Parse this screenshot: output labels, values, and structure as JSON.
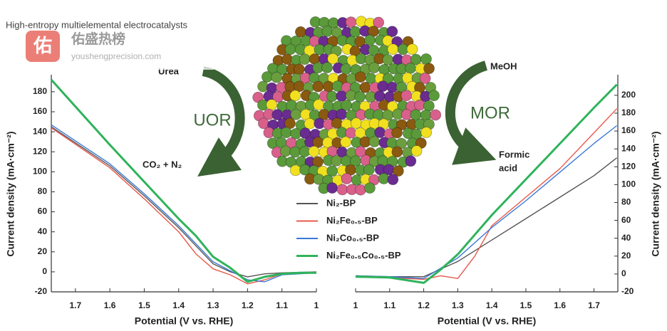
{
  "title": "High-entropy multielemental electrocatalysts",
  "watermark": {
    "icon": "佑",
    "name": "佑盛热榜",
    "url": "youshengprecision.com"
  },
  "annotations": {
    "urea": "Urea",
    "uor": "UOR",
    "uor_product": "CO₂ + N₂",
    "meoh": "MeOH",
    "mor": "MOR",
    "mor_product_1": "Formic",
    "mor_product_2": "acid"
  },
  "chart_data": [
    {
      "type": "line",
      "xlabel": "Potential (V vs. RHE)",
      "ylabel": "Current density (mA·cm⁻²)",
      "yaxis_side": "left",
      "xlim": [
        1.77,
        1.0
      ],
      "xticks": [
        1.7,
        1.6,
        1.5,
        1.4,
        1.3,
        1.2,
        1.1,
        1.0
      ],
      "ylim": [
        -20,
        197
      ],
      "yticks": [
        -20,
        0,
        20,
        40,
        60,
        80,
        100,
        120,
        140,
        160,
        180
      ],
      "series": [
        {
          "name": "Ni₂-BP",
          "color": "#555555",
          "x": [
            1.77,
            1.6,
            1.5,
            1.4,
            1.35,
            1.3,
            1.25,
            1.2,
            1.15,
            1.1,
            1.0
          ],
          "values": [
            145,
            106,
            76,
            44,
            26,
            8,
            0,
            -5,
            -2,
            -1,
            0
          ]
        },
        {
          "name": "Ni₂Fe₀.₅-BP",
          "color": "#e8584a",
          "x": [
            1.77,
            1.6,
            1.5,
            1.4,
            1.35,
            1.3,
            1.25,
            1.2,
            1.15,
            1.1,
            1.0
          ],
          "values": [
            144,
            104,
            73,
            40,
            18,
            3,
            -3,
            -12,
            -8,
            -2,
            -1
          ]
        },
        {
          "name": "Ni₂Co₀.₅-BP",
          "color": "#3a78d8",
          "x": [
            1.77,
            1.6,
            1.5,
            1.4,
            1.35,
            1.3,
            1.25,
            1.2,
            1.15,
            1.1,
            1.0
          ],
          "values": [
            147,
            108,
            78,
            46,
            28,
            10,
            1,
            -8,
            -10,
            -3,
            -1
          ]
        },
        {
          "name": "Ni₂Fe₀.₅Co₀.₅-BP",
          "color": "#2fb35a",
          "x": [
            1.77,
            1.6,
            1.5,
            1.4,
            1.35,
            1.3,
            1.25,
            1.2,
            1.15,
            1.1,
            1.05,
            1.0
          ],
          "values": [
            192,
            127,
            90,
            53,
            36,
            15,
            4,
            -10,
            -5,
            -2,
            -1,
            -1
          ]
        }
      ]
    },
    {
      "type": "line",
      "xlabel": "Potential (V vs. RHE)",
      "ylabel": "Current density (mA·cm⁻²)",
      "yaxis_side": "right",
      "xlim": [
        1.0,
        1.77
      ],
      "xticks": [
        1.0,
        1.1,
        1.2,
        1.3,
        1.4,
        1.5,
        1.6,
        1.7
      ],
      "ylim": [
        -20,
        223
      ],
      "yticks": [
        -20,
        0,
        20,
        40,
        60,
        80,
        100,
        120,
        140,
        160,
        180,
        200
      ],
      "series": [
        {
          "name": "Ni₂-BP",
          "color": "#555555",
          "x": [
            1.0,
            1.1,
            1.2,
            1.3,
            1.4,
            1.5,
            1.6,
            1.7,
            1.767
          ],
          "values": [
            -2,
            -3,
            -3,
            14,
            38,
            62,
            86,
            110,
            130
          ]
        },
        {
          "name": "Ni₂Fe₀.₅-BP",
          "color": "#e8584a",
          "x": [
            1.0,
            1.1,
            1.2,
            1.25,
            1.3,
            1.35,
            1.4,
            1.5,
            1.6,
            1.7,
            1.767
          ],
          "values": [
            -3,
            -4,
            -6,
            -2,
            -5,
            20,
            54,
            86,
            118,
            158,
            185
          ]
        },
        {
          "name": "Ni₂Co₀.₅-BP",
          "color": "#3a78d8",
          "x": [
            1.0,
            1.1,
            1.2,
            1.3,
            1.4,
            1.5,
            1.6,
            1.7,
            1.767
          ],
          "values": [
            -2,
            -3,
            -5,
            18,
            52,
            82,
            114,
            146,
            166
          ]
        },
        {
          "name": "Ni₂Fe₀.₅Co₀.₅-BP",
          "color": "#2fb35a",
          "x": [
            1.0,
            1.1,
            1.2,
            1.25,
            1.3,
            1.4,
            1.5,
            1.6,
            1.7,
            1.767
          ],
          "values": [
            -3,
            -4,
            -10,
            5,
            22,
            66,
            106,
            146,
            186,
            212
          ]
        }
      ]
    }
  ]
}
